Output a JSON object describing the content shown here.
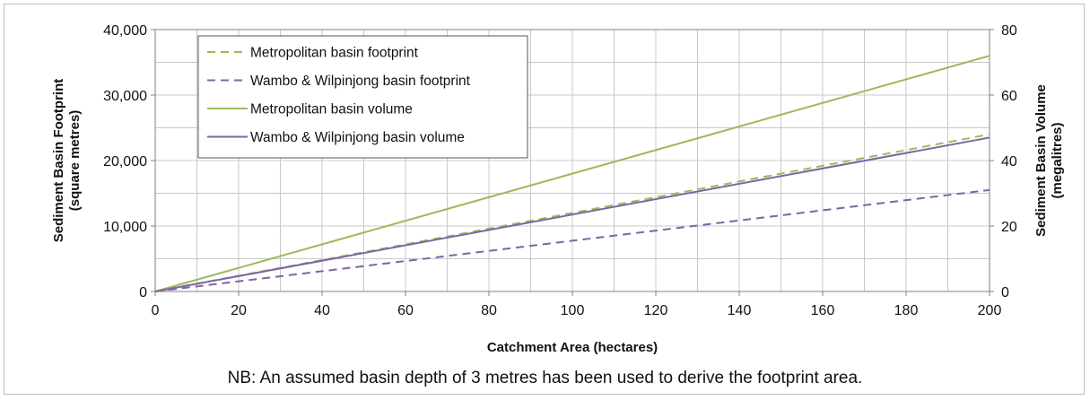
{
  "chart_data": {
    "type": "line",
    "xlabel": "Catchment Area (hectares)",
    "ylabel_left": [
      "Sediment Basin Footprint",
      "(square metres)"
    ],
    "ylabel_right": [
      "Sediment Basin Volume",
      "(megalitres)"
    ],
    "xlim": [
      0,
      200
    ],
    "ylim_left": [
      0,
      40000
    ],
    "ylim_right": [
      0,
      80
    ],
    "x_ticks": [
      0,
      20,
      40,
      60,
      80,
      100,
      120,
      140,
      160,
      180,
      200
    ],
    "y_left_ticks": [
      0,
      10000,
      20000,
      30000,
      40000
    ],
    "y_left_tick_labels": [
      "0",
      "10,000",
      "20,000",
      "30,000",
      "40,000"
    ],
    "y_right_ticks": [
      0,
      20,
      40,
      60,
      80
    ],
    "y_right_tick_labels": [
      "0",
      "20",
      "40",
      "60",
      "80"
    ],
    "grid": true,
    "legend_position": "top-left",
    "series": [
      {
        "name": "Metropolitan basin footprint",
        "axis": "left",
        "style": "dashed",
        "color": "#9bbb59",
        "x": [
          0,
          200
        ],
        "y": [
          0,
          24000
        ]
      },
      {
        "name": "Wambo & Wilpinjong basin footprint",
        "axis": "left",
        "style": "dashed",
        "color": "#8064a2",
        "x": [
          0,
          200
        ],
        "y": [
          0,
          15500
        ]
      },
      {
        "name": "Metropolitan basin volume",
        "axis": "right",
        "style": "solid",
        "color": "#9bbb59",
        "x": [
          0,
          200
        ],
        "y": [
          0,
          72
        ]
      },
      {
        "name": "Wambo & Wilpinjong basin volume",
        "axis": "right",
        "style": "solid",
        "color": "#8064a2",
        "x": [
          0,
          200
        ],
        "y": [
          0,
          47
        ]
      }
    ]
  },
  "note": "NB:  An assumed basin depth of 3 metres has been used to derive the footprint area."
}
